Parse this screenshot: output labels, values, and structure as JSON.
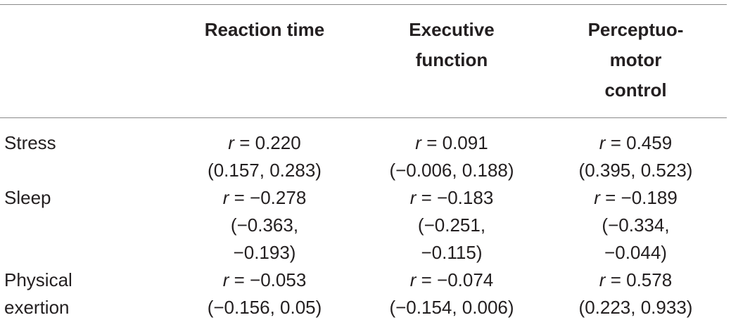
{
  "table": {
    "columns": [
      "",
      "Reaction time",
      "Executive function",
      "Perceptuo-motor control"
    ],
    "header_lines": [
      [],
      [
        "Reaction time"
      ],
      [
        "Executive",
        "function"
      ],
      [
        "Perceptuo-",
        "motor",
        "control"
      ]
    ],
    "r_symbol": "r",
    "rows": [
      {
        "label": "Stress",
        "label_lines": [
          "Stress"
        ],
        "cells": [
          {
            "r": "= 0.220",
            "ci_lines": [
              "(0.157, 0.283)"
            ]
          },
          {
            "r": "= 0.091",
            "ci_lines": [
              "(−0.006, 0.188)"
            ]
          },
          {
            "r": "= 0.459",
            "ci_lines": [
              "(0.395, 0.523)"
            ]
          }
        ]
      },
      {
        "label": "Sleep",
        "label_lines": [
          "Sleep"
        ],
        "cells": [
          {
            "r": "= −0.278",
            "ci_lines": [
              "(−0.363,",
              "−0.193)"
            ]
          },
          {
            "r": "= −0.183",
            "ci_lines": [
              "(−0.251,",
              "−0.115)"
            ]
          },
          {
            "r": "= −0.189",
            "ci_lines": [
              "(−0.334,",
              "−0.044)"
            ]
          }
        ]
      },
      {
        "label": "Physical exertion",
        "label_lines": [
          "Physical",
          "exertion"
        ],
        "cells": [
          {
            "r": "= −0.053",
            "ci_lines": [
              "(−0.156, 0.05)"
            ]
          },
          {
            "r": "= −0.074",
            "ci_lines": [
              "(−0.154, 0.006)"
            ]
          },
          {
            "r": "= 0.578",
            "ci_lines": [
              "(0.223, 0.933)"
            ]
          }
        ]
      }
    ]
  }
}
